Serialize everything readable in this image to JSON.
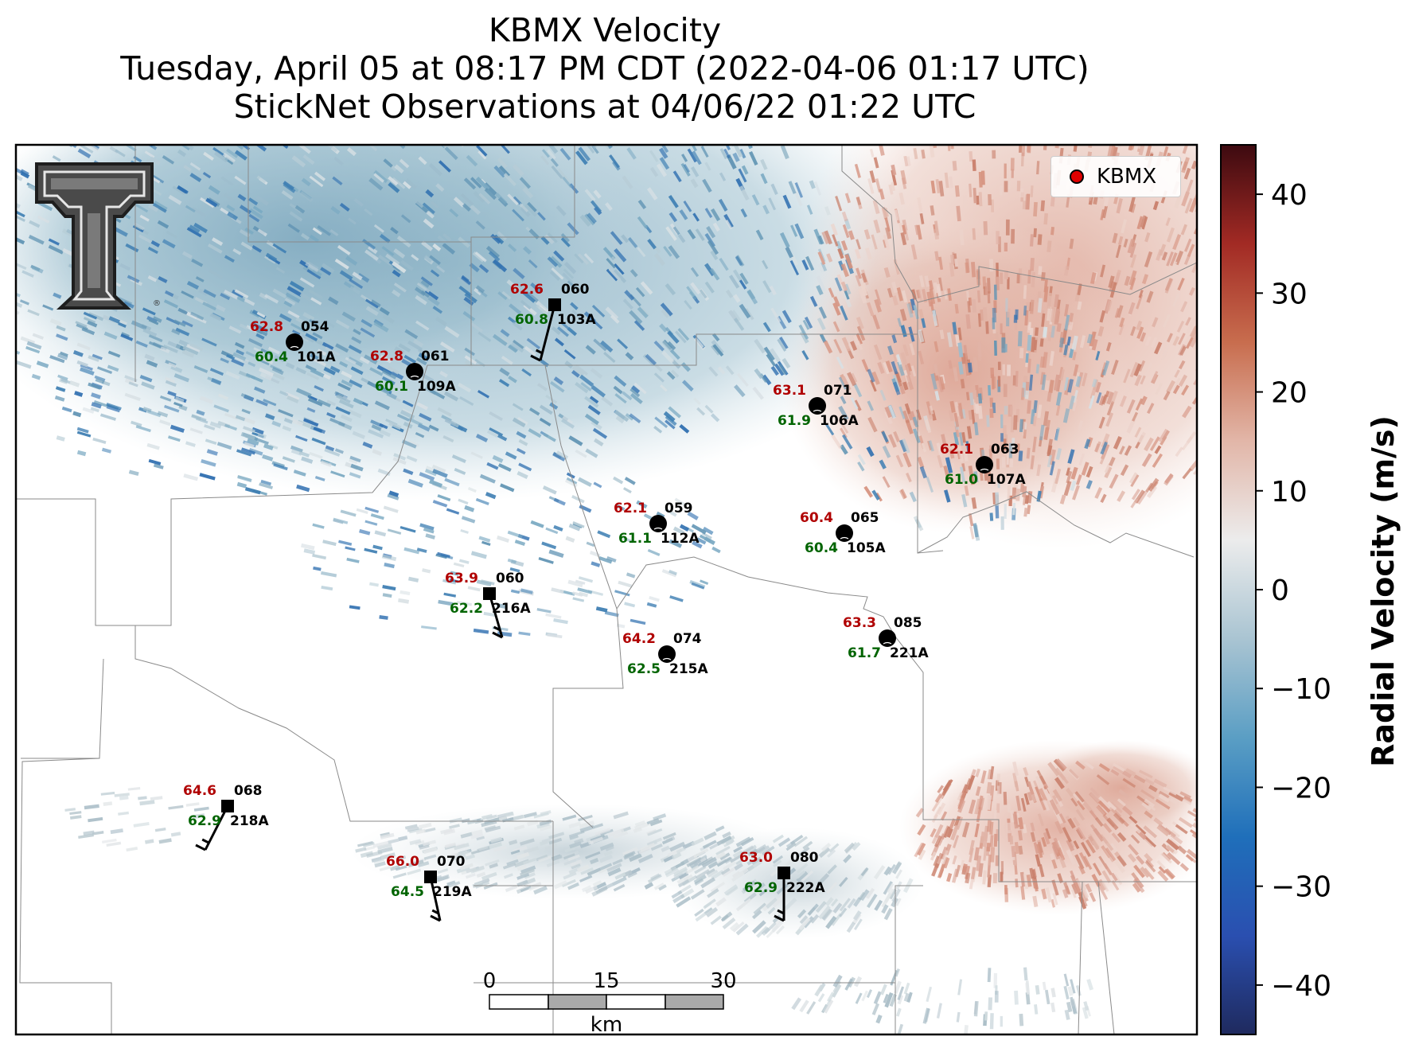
{
  "title": {
    "line1": "KBMX Velocity",
    "line2": "Tuesday, April 05 at 08:17 PM CDT (2022-04-06 01:17 UTC)",
    "line3": "StickNet Observations at 04/06/22 01:22 UTC"
  },
  "legend": {
    "label": "KBMX",
    "marker_color": "#e00000"
  },
  "colorbar": {
    "label": "Radial Velocity (m/s)",
    "ticks": [
      "40",
      "30",
      "20",
      "10",
      "0",
      "−10",
      "−20",
      "−30",
      "−40"
    ],
    "tick_values": [
      40,
      30,
      20,
      10,
      0,
      -10,
      -20,
      -30,
      -40
    ],
    "range": [
      -45,
      45
    ],
    "colors": [
      "#1f2a5e",
      "#2a4fb0",
      "#1f6fba",
      "#5a9ec4",
      "#a9c4d2",
      "#ececec",
      "#e2b6a8",
      "#c86d4e",
      "#a22a24",
      "#3d0a10"
    ]
  },
  "scale_bar": {
    "labels": [
      "0",
      "15",
      "30"
    ],
    "unit": "km"
  },
  "logo": {
    "name": "Texas Tech University Double T",
    "text": "T"
  },
  "stations": [
    {
      "id": "101A",
      "temp": "62.8",
      "dew": "60.4",
      "dir": "054",
      "marker": "circle"
    },
    {
      "id": "109A",
      "temp": "62.8",
      "dew": "60.1",
      "dir": "061",
      "marker": "circle"
    },
    {
      "id": "103A",
      "temp": "62.6",
      "dew": "60.8",
      "dir": "060",
      "marker": "square"
    },
    {
      "id": "106A",
      "temp": "63.1",
      "dew": "61.9",
      "dir": "071",
      "marker": "circle"
    },
    {
      "id": "107A",
      "temp": "62.1",
      "dew": "61.0",
      "dir": "063",
      "marker": "circle"
    },
    {
      "id": "112A",
      "temp": "62.1",
      "dew": "61.1",
      "dir": "059",
      "marker": "circle"
    },
    {
      "id": "105A",
      "temp": "60.4",
      "dew": "60.4",
      "dir": "065",
      "marker": "circle"
    },
    {
      "id": "216A",
      "temp": "63.9",
      "dew": "62.2",
      "dir": "060",
      "marker": "square"
    },
    {
      "id": "215A",
      "temp": "64.2",
      "dew": "62.5",
      "dir": "074",
      "marker": "circle"
    },
    {
      "id": "221A",
      "temp": "63.3",
      "dew": "61.7",
      "dir": "085",
      "marker": "circle"
    },
    {
      "id": "218A",
      "temp": "64.6",
      "dew": "62.9",
      "dir": "068",
      "marker": "square"
    },
    {
      "id": "219A",
      "temp": "66.0",
      "dew": "64.5",
      "dir": "070",
      "marker": "square"
    },
    {
      "id": "222A",
      "temp": "63.0",
      "dew": "62.9",
      "dir": "080",
      "marker": "square"
    }
  ],
  "colors": {
    "temp": "#b00000",
    "dew": "#006400",
    "label": "#000000",
    "county_line": "#888888"
  }
}
